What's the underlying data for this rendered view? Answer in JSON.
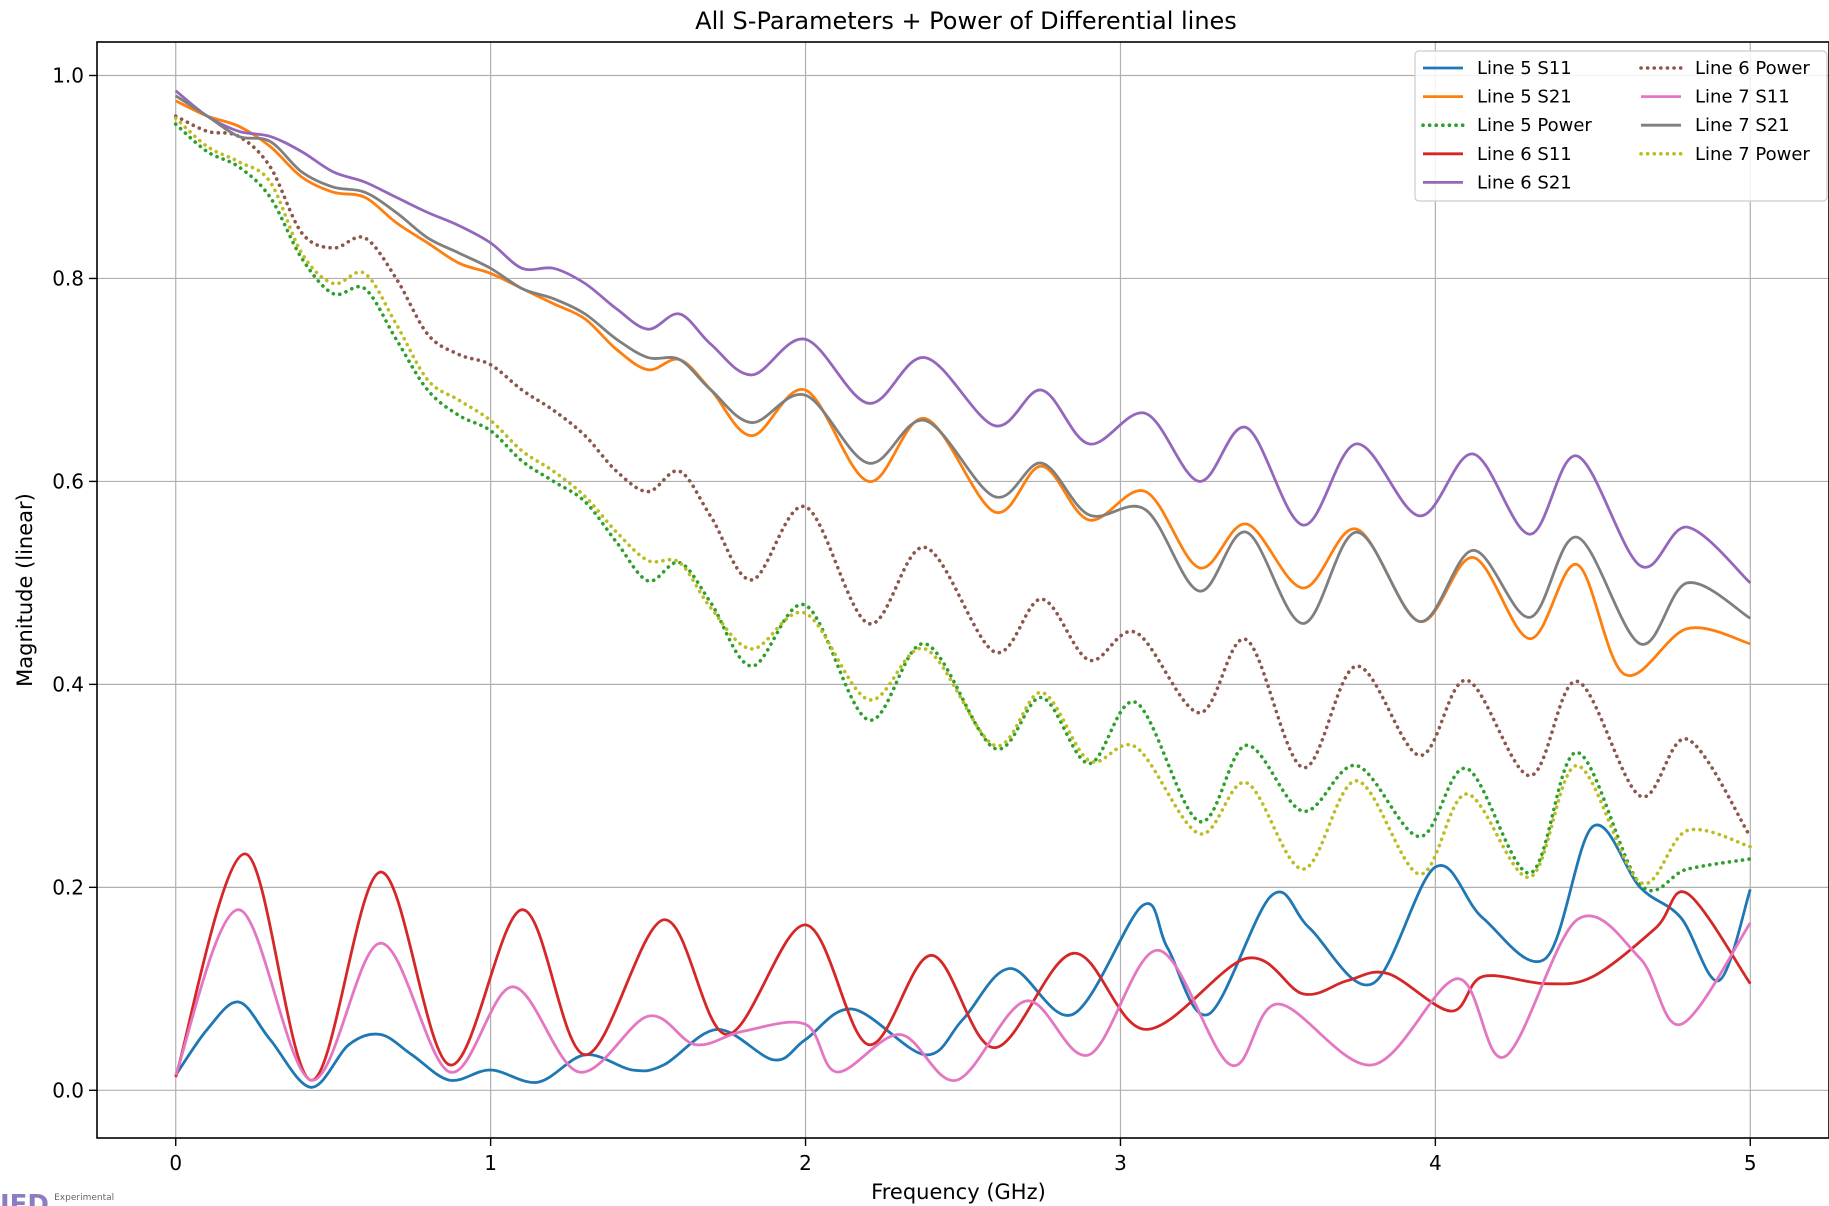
{
  "chart_data": {
    "type": "line",
    "title": "All S-Parameters + Power of Differential lines",
    "xlabel": "Frequency (GHz)",
    "ylabel": "Magnitude (linear)",
    "xlim": [
      -0.25,
      5.25
    ],
    "ylim": [
      -0.047,
      1.033
    ],
    "xticks": [
      0,
      1,
      2,
      3,
      4,
      5
    ],
    "yticks": [
      0.0,
      0.2,
      0.4,
      0.6,
      0.8,
      1.0
    ],
    "xtick_labels": [
      "0",
      "1",
      "2",
      "3",
      "4",
      "5"
    ],
    "ytick_labels": [
      "0.0",
      "0.2",
      "0.4",
      "0.6",
      "0.8",
      "1.0"
    ],
    "grid": true,
    "legend_position": "top-right",
    "legend_columns": 2,
    "series": [
      {
        "name": "Line 5 S11",
        "color": "#1f77b4",
        "style": "solid",
        "x": [
          0,
          0.1,
          0.2,
          0.3,
          0.43,
          0.55,
          0.65,
          0.75,
          0.87,
          1.0,
          1.15,
          1.3,
          1.45,
          1.55,
          1.72,
          1.9,
          2.0,
          2.15,
          2.38,
          2.5,
          2.65,
          2.85,
          3.07,
          3.15,
          3.28,
          3.48,
          3.6,
          3.8,
          4.0,
          4.15,
          4.35,
          4.5,
          4.65,
          4.78,
          4.9,
          5.0
        ],
        "y": [
          0.015,
          0.06,
          0.087,
          0.05,
          0.003,
          0.045,
          0.055,
          0.035,
          0.01,
          0.02,
          0.008,
          0.035,
          0.02,
          0.025,
          0.06,
          0.03,
          0.05,
          0.08,
          0.035,
          0.07,
          0.12,
          0.075,
          0.182,
          0.14,
          0.075,
          0.192,
          0.16,
          0.105,
          0.22,
          0.17,
          0.13,
          0.26,
          0.2,
          0.17,
          0.108,
          0.198
        ]
      },
      {
        "name": "Line 5 S21",
        "color": "#ff7f0e",
        "style": "solid",
        "x": [
          0,
          0.1,
          0.2,
          0.3,
          0.4,
          0.5,
          0.6,
          0.7,
          0.8,
          0.9,
          1.0,
          1.1,
          1.2,
          1.3,
          1.4,
          1.5,
          1.6,
          1.7,
          1.83,
          2.0,
          2.2,
          2.38,
          2.6,
          2.75,
          2.9,
          3.08,
          3.25,
          3.4,
          3.58,
          3.75,
          3.95,
          4.12,
          4.3,
          4.45,
          4.6,
          4.8,
          5.0
        ],
        "y": [
          0.975,
          0.96,
          0.95,
          0.93,
          0.9,
          0.885,
          0.88,
          0.855,
          0.835,
          0.815,
          0.805,
          0.79,
          0.775,
          0.76,
          0.73,
          0.71,
          0.72,
          0.69,
          0.645,
          0.69,
          0.6,
          0.662,
          0.57,
          0.615,
          0.562,
          0.59,
          0.515,
          0.558,
          0.495,
          0.553,
          0.462,
          0.525,
          0.445,
          0.518,
          0.41,
          0.455,
          0.44
        ]
      },
      {
        "name": "Line 5 Power",
        "color": "#2ca02c",
        "style": "dotted",
        "x": [
          0,
          0.1,
          0.2,
          0.3,
          0.4,
          0.5,
          0.6,
          0.7,
          0.8,
          0.9,
          1.0,
          1.1,
          1.2,
          1.3,
          1.4,
          1.5,
          1.6,
          1.7,
          1.83,
          2.0,
          2.2,
          2.38,
          2.6,
          2.75,
          2.9,
          3.05,
          3.25,
          3.4,
          3.58,
          3.75,
          3.95,
          4.1,
          4.3,
          4.45,
          4.65,
          4.8,
          5.0
        ],
        "y": [
          0.952,
          0.925,
          0.91,
          0.88,
          0.82,
          0.785,
          0.79,
          0.74,
          0.69,
          0.665,
          0.65,
          0.62,
          0.6,
          0.58,
          0.54,
          0.502,
          0.52,
          0.48,
          0.418,
          0.478,
          0.365,
          0.44,
          0.337,
          0.387,
          0.322,
          0.382,
          0.265,
          0.34,
          0.275,
          0.32,
          0.25,
          0.317,
          0.214,
          0.333,
          0.203,
          0.218,
          0.228
        ]
      },
      {
        "name": "Line 6 S11",
        "color": "#d62728",
        "style": "solid",
        "x": [
          0,
          0.22,
          0.43,
          0.65,
          0.87,
          1.1,
          1.3,
          1.55,
          1.75,
          2.0,
          2.2,
          2.4,
          2.6,
          2.85,
          3.08,
          3.4,
          3.58,
          3.72,
          3.85,
          4.05,
          4.15,
          4.35,
          4.5,
          4.7,
          4.8,
          5.0
        ],
        "y": [
          0.013,
          0.233,
          0.01,
          0.215,
          0.025,
          0.178,
          0.035,
          0.168,
          0.055,
          0.163,
          0.045,
          0.133,
          0.042,
          0.135,
          0.06,
          0.13,
          0.095,
          0.108,
          0.115,
          0.078,
          0.112,
          0.105,
          0.112,
          0.16,
          0.194,
          0.105
        ]
      },
      {
        "name": "Line 6 S21",
        "color": "#9467bd",
        "style": "solid",
        "x": [
          0,
          0.1,
          0.2,
          0.3,
          0.4,
          0.5,
          0.6,
          0.7,
          0.8,
          0.9,
          1.0,
          1.1,
          1.2,
          1.3,
          1.4,
          1.5,
          1.6,
          1.7,
          1.83,
          2.0,
          2.2,
          2.38,
          2.6,
          2.75,
          2.9,
          3.08,
          3.25,
          3.4,
          3.58,
          3.75,
          3.95,
          4.12,
          4.3,
          4.45,
          4.65,
          4.8,
          5.0
        ],
        "y": [
          0.985,
          0.96,
          0.945,
          0.94,
          0.925,
          0.905,
          0.895,
          0.88,
          0.865,
          0.852,
          0.835,
          0.81,
          0.81,
          0.795,
          0.77,
          0.75,
          0.765,
          0.735,
          0.705,
          0.74,
          0.677,
          0.722,
          0.655,
          0.69,
          0.637,
          0.667,
          0.6,
          0.653,
          0.557,
          0.637,
          0.566,
          0.627,
          0.548,
          0.625,
          0.517,
          0.555,
          0.5
        ]
      },
      {
        "name": "Line 6 Power",
        "color": "#8c564b",
        "style": "dotted",
        "x": [
          0,
          0.1,
          0.2,
          0.3,
          0.4,
          0.5,
          0.6,
          0.7,
          0.8,
          0.9,
          1.0,
          1.1,
          1.2,
          1.3,
          1.4,
          1.5,
          1.6,
          1.7,
          1.83,
          2.0,
          2.2,
          2.38,
          2.6,
          2.75,
          2.9,
          3.05,
          3.25,
          3.4,
          3.58,
          3.75,
          3.95,
          4.1,
          4.3,
          4.45,
          4.65,
          4.8,
          5.0
        ],
        "y": [
          0.96,
          0.945,
          0.94,
          0.91,
          0.845,
          0.83,
          0.84,
          0.8,
          0.745,
          0.725,
          0.715,
          0.69,
          0.67,
          0.645,
          0.61,
          0.59,
          0.61,
          0.565,
          0.503,
          0.575,
          0.46,
          0.535,
          0.432,
          0.484,
          0.424,
          0.451,
          0.372,
          0.444,
          0.318,
          0.418,
          0.33,
          0.404,
          0.31,
          0.403,
          0.29,
          0.346,
          0.25
        ]
      },
      {
        "name": "Line 7 S11",
        "color": "#e377c2",
        "style": "solid",
        "x": [
          0,
          0.2,
          0.43,
          0.65,
          0.87,
          1.07,
          1.28,
          1.5,
          1.65,
          1.8,
          2.0,
          2.1,
          2.3,
          2.48,
          2.7,
          2.9,
          3.12,
          3.35,
          3.5,
          3.8,
          4.07,
          4.22,
          4.45,
          4.65,
          4.78,
          5.0
        ],
        "y": [
          0.015,
          0.178,
          0.01,
          0.145,
          0.018,
          0.102,
          0.018,
          0.073,
          0.045,
          0.058,
          0.065,
          0.018,
          0.055,
          0.01,
          0.088,
          0.035,
          0.138,
          0.025,
          0.085,
          0.025,
          0.11,
          0.033,
          0.168,
          0.13,
          0.065,
          0.165
        ]
      },
      {
        "name": "Line 7 S21",
        "color": "#7f7f7f",
        "style": "solid",
        "x": [
          0,
          0.1,
          0.2,
          0.3,
          0.4,
          0.5,
          0.6,
          0.7,
          0.8,
          0.9,
          1.0,
          1.1,
          1.2,
          1.3,
          1.4,
          1.5,
          1.6,
          1.7,
          1.83,
          2.0,
          2.2,
          2.38,
          2.6,
          2.75,
          2.9,
          3.08,
          3.25,
          3.4,
          3.58,
          3.75,
          3.95,
          4.12,
          4.3,
          4.45,
          4.65,
          4.8,
          5.0
        ],
        "y": [
          0.98,
          0.96,
          0.94,
          0.935,
          0.905,
          0.89,
          0.885,
          0.865,
          0.84,
          0.825,
          0.81,
          0.79,
          0.78,
          0.765,
          0.74,
          0.722,
          0.72,
          0.69,
          0.658,
          0.685,
          0.618,
          0.66,
          0.585,
          0.618,
          0.567,
          0.572,
          0.492,
          0.55,
          0.46,
          0.55,
          0.462,
          0.532,
          0.466,
          0.545,
          0.44,
          0.5,
          0.465
        ]
      },
      {
        "name": "Line 7 Power",
        "color": "#bcbd22",
        "style": "dotted",
        "x": [
          0,
          0.1,
          0.2,
          0.3,
          0.4,
          0.5,
          0.6,
          0.7,
          0.8,
          0.9,
          1.0,
          1.1,
          1.2,
          1.3,
          1.4,
          1.5,
          1.6,
          1.7,
          1.83,
          2.0,
          2.2,
          2.38,
          2.6,
          2.75,
          2.9,
          3.05,
          3.25,
          3.4,
          3.58,
          3.75,
          3.95,
          4.1,
          4.3,
          4.45,
          4.65,
          4.8,
          5.0
        ],
        "y": [
          0.958,
          0.93,
          0.915,
          0.895,
          0.825,
          0.795,
          0.805,
          0.755,
          0.7,
          0.68,
          0.66,
          0.63,
          0.61,
          0.585,
          0.55,
          0.522,
          0.52,
          0.475,
          0.435,
          0.47,
          0.385,
          0.435,
          0.34,
          0.392,
          0.325,
          0.338,
          0.253,
          0.303,
          0.218,
          0.305,
          0.213,
          0.292,
          0.21,
          0.32,
          0.205,
          0.256,
          0.24
        ]
      }
    ]
  },
  "watermark": {
    "mark": "IED",
    "text": "Experimental"
  }
}
